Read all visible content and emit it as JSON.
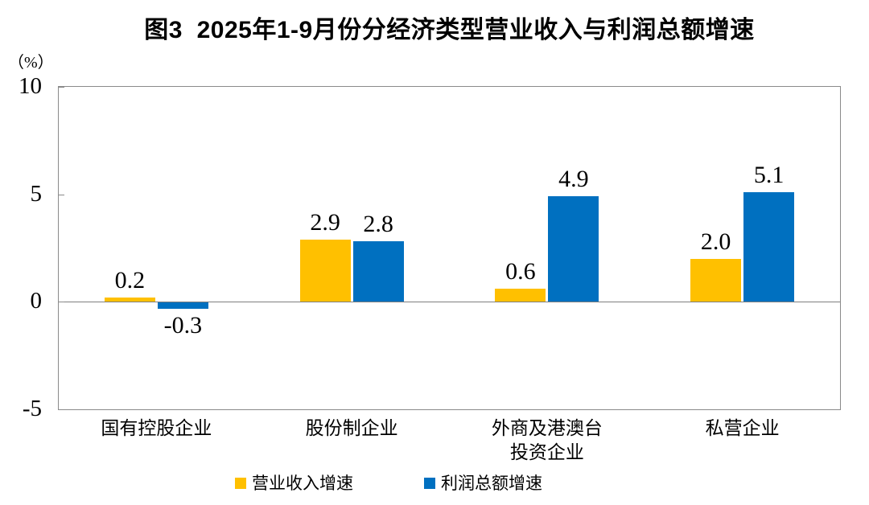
{
  "chart_data": {
    "type": "bar",
    "title": "图3  2025年1-9月份分经济类型营业收入与利润总额增速",
    "unit_label": "（%）",
    "categories": [
      "国有控股企业",
      "股份制企业",
      "外商及港澳台\n投资企业",
      "私营企业"
    ],
    "series": [
      {
        "name": "营业收入增速",
        "color": "#FFC000",
        "values": [
          0.2,
          2.9,
          0.6,
          2.0
        ]
      },
      {
        "name": "利润总额增速",
        "color": "#0070C0",
        "values": [
          -0.3,
          2.8,
          4.9,
          5.1
        ]
      }
    ],
    "ylim": [
      -5,
      10
    ],
    "yticks": [
      10,
      5,
      0,
      -5
    ],
    "value_label_decimals": 1,
    "legend_position": "bottom",
    "grid": false,
    "axis_color": "#8a8a8a",
    "zero_line_color": "#7f7f7f",
    "text_color": "#000000"
  }
}
